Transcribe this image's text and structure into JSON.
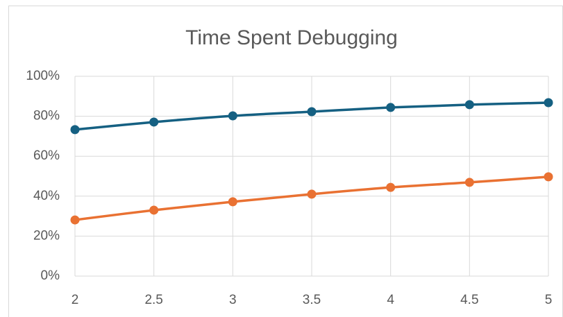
{
  "chart_data": {
    "type": "line",
    "title": "Time Spent Debugging",
    "x": [
      2,
      2.5,
      3,
      3.5,
      4,
      4.5,
      5
    ],
    "series": [
      {
        "color": "#156082",
        "values": [
          73.3,
          77.1,
          80.2,
          82.3,
          84.4,
          85.8,
          86.8
        ]
      },
      {
        "color": "#e97132",
        "values": [
          28.1,
          33.0,
          37.2,
          41.0,
          44.4,
          46.9,
          49.7
        ]
      }
    ],
    "xlim": [
      2,
      5
    ],
    "xticks": [
      2,
      2.5,
      3,
      3.5,
      4,
      4.5,
      5
    ],
    "ylim": [
      0,
      100
    ],
    "yticks": [
      {
        "value": 0,
        "label": "0%"
      },
      {
        "value": 20,
        "label": "20%"
      },
      {
        "value": 40,
        "label": "40%"
      },
      {
        "value": 60,
        "label": "60%"
      },
      {
        "value": 80,
        "label": "80%"
      },
      {
        "value": 100,
        "label": "100%"
      }
    ],
    "grid": true
  }
}
